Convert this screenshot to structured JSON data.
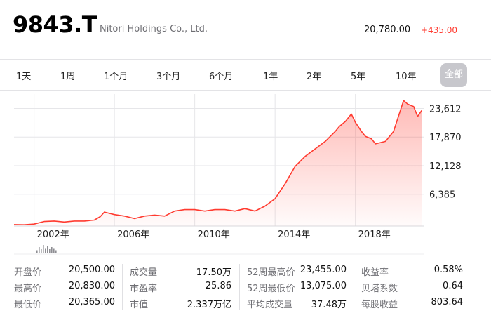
{
  "header": {
    "ticker": "9843.T",
    "company": "Nitori Holdings Co., Ltd.",
    "price": "20,780.00",
    "change": "+435.00",
    "change_color": "#ff3b30"
  },
  "ranges": [
    "1天",
    "1周",
    "1个月",
    "3个月",
    "6个月",
    "1年",
    "2年",
    "5年",
    "10年",
    "全部"
  ],
  "selected_range": "全部",
  "chart_data": {
    "type": "area",
    "title": "",
    "line_color": "#ff3b30",
    "fill_color": "#ff3b30",
    "grid": true,
    "x": [
      2001.0,
      2001.5,
      2002.0,
      2002.5,
      2003.0,
      2003.5,
      2004.0,
      2004.5,
      2005.0,
      2005.3,
      2005.5,
      2006.0,
      2006.5,
      2007.0,
      2007.5,
      2008.0,
      2008.5,
      2009.0,
      2009.5,
      2010.0,
      2010.5,
      2011.0,
      2011.5,
      2012.0,
      2012.5,
      2013.0,
      2013.5,
      2014.0,
      2014.5,
      2015.0,
      2015.5,
      2016.0,
      2016.5,
      2017.0,
      2017.2,
      2017.5,
      2017.8,
      2018.0,
      2018.3,
      2018.5,
      2018.8,
      2019.0,
      2019.5,
      2019.9,
      2020.1,
      2020.4,
      2020.6,
      2020.9,
      2021.1,
      2021.3
    ],
    "values": [
      300,
      250,
      400,
      900,
      1000,
      800,
      1000,
      1000,
      1200,
      1900,
      2800,
      2300,
      2000,
      1500,
      2000,
      2200,
      2000,
      3000,
      3300,
      3300,
      3000,
      3300,
      3300,
      3000,
      3500,
      3000,
      4000,
      5500,
      8500,
      12000,
      14000,
      15500,
      17000,
      19000,
      20000,
      21000,
      22500,
      20800,
      19000,
      18000,
      17500,
      16500,
      17000,
      19000,
      21500,
      25200,
      24500,
      24000,
      22000,
      23200
    ],
    "y_ticks": [
      6385,
      12128,
      17870,
      23612
    ],
    "y_tick_labels": [
      "6,385",
      "12,128",
      "17,870",
      "23,612"
    ],
    "x_ticks": [
      2002,
      2006,
      2010,
      2014,
      2018
    ],
    "x_tick_labels": [
      "2002年",
      "2006年",
      "2010年",
      "2014年",
      "2018年"
    ],
    "xlim": [
      2001.0,
      2021.4
    ],
    "ylim": [
      0,
      26500
    ]
  },
  "volume_bars": [
    3,
    6,
    4,
    8,
    5,
    7,
    4,
    6,
    5,
    3
  ],
  "stats": [
    {
      "label": "开盘价",
      "value": "20,500.00"
    },
    {
      "label": "最高价",
      "value": "20,830.00"
    },
    {
      "label": "最低价",
      "value": "20,365.00"
    },
    {
      "label": "成交量",
      "value": "17.50万"
    },
    {
      "label": "市盈率",
      "value": "25.86"
    },
    {
      "label": "市值",
      "value": "2.337万亿"
    },
    {
      "label": "52周最高价",
      "value": "23,455.00"
    },
    {
      "label": "52周最低价",
      "value": "13,075.00"
    },
    {
      "label": "平均成交量",
      "value": "37.48万"
    },
    {
      "label": "收益率",
      "value": "0.58%"
    },
    {
      "label": "贝塔系数",
      "value": "0.64"
    },
    {
      "label": "每股收益",
      "value": "803.64"
    }
  ]
}
